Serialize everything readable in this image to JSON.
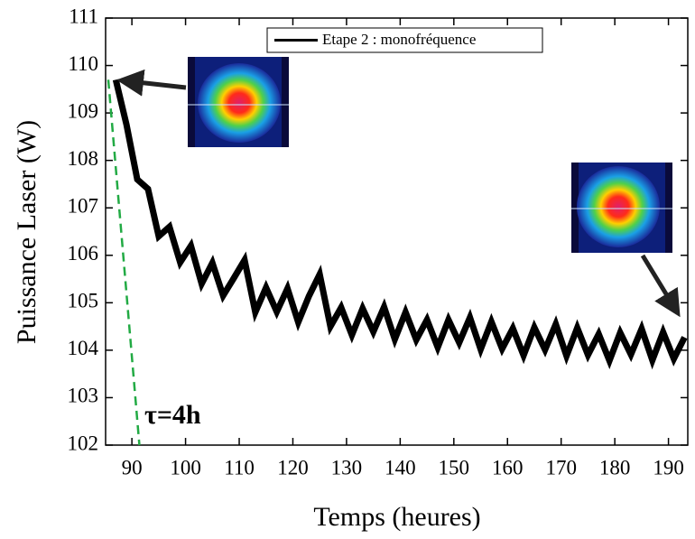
{
  "chart_data": {
    "type": "line",
    "xlabel": "Temps (heures)",
    "ylabel": "Puissance Laser (W)",
    "xlim": [
      85.1,
      193.6
    ],
    "ylim": [
      102,
      111
    ],
    "xticks": [
      90,
      100,
      110,
      120,
      130,
      140,
      150,
      160,
      170,
      180,
      190
    ],
    "yticks": [
      102,
      103,
      104,
      105,
      106,
      107,
      108,
      109,
      110,
      111
    ],
    "legend": "top-center",
    "series": [
      {
        "name": "Etape 2 : monofréquence",
        "color": "#000000",
        "x": [
          87,
          89,
          91,
          93,
          95,
          97,
          99,
          101,
          103,
          105,
          107,
          109,
          111,
          113,
          115,
          117,
          119,
          121,
          123,
          125,
          127,
          129,
          131,
          133,
          135,
          137,
          139,
          141,
          143,
          145,
          147,
          149,
          151,
          153,
          155,
          157,
          159,
          161,
          163,
          165,
          167,
          169,
          171,
          173,
          175,
          177,
          179,
          181,
          183,
          185,
          187,
          189,
          191,
          193
        ],
        "values": [
          109.7,
          108.75,
          107.6,
          107.4,
          106.4,
          106.6,
          105.85,
          106.2,
          105.4,
          105.84,
          105.15,
          105.52,
          105.9,
          104.8,
          105.32,
          104.81,
          105.3,
          104.59,
          105.14,
          105.6,
          104.5,
          104.9,
          104.32,
          104.88,
          104.39,
          104.91,
          104.23,
          104.8,
          104.22,
          104.64,
          104.06,
          104.64,
          104.16,
          104.69,
          104.02,
          104.6,
          104.03,
          104.46,
          103.89,
          104.48,
          104.01,
          104.55,
          103.88,
          104.47,
          103.9,
          104.34,
          103.78,
          104.37,
          103.91,
          104.45,
          103.79,
          104.38,
          103.82,
          104.27
        ]
      }
    ],
    "fit": {
      "x": [
        85.6,
        91.4
      ],
      "values": [
        109.7,
        102
      ],
      "color": "#22aa44"
    },
    "annotation": "τ=4h"
  }
}
